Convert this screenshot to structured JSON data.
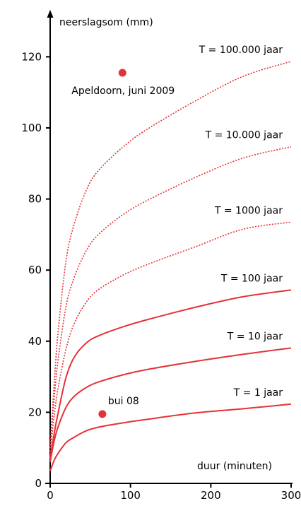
{
  "chart_data": {
    "type": "line",
    "ylabel": "neerslagsom (mm)",
    "xlabel": "duur (minuten)",
    "xlim": [
      0,
      300
    ],
    "ylim": [
      0,
      130
    ],
    "xticks": [
      0,
      100,
      200,
      300
    ],
    "yticks": [
      0,
      20,
      40,
      60,
      80,
      100,
      120
    ],
    "grid": false,
    "series": [
      {
        "name": "T = 1 jaar",
        "style": "solid",
        "x": [
          0,
          5,
          10,
          20,
          30,
          45,
          60,
          90,
          120,
          180,
          240,
          300
        ],
        "y": [
          3.5,
          6.5,
          8.5,
          11.5,
          13,
          14.8,
          15.8,
          17,
          18,
          19.8,
          21,
          22.3
        ]
      },
      {
        "name": "T = 10 jaar",
        "style": "solid",
        "x": [
          0,
          5,
          10,
          20,
          30,
          45,
          60,
          90,
          120,
          180,
          240,
          300
        ],
        "y": [
          6,
          12,
          16,
          21.5,
          24.5,
          27,
          28.5,
          30.5,
          32,
          34.3,
          36.3,
          38.1
        ]
      },
      {
        "name": "T = 100 jaar",
        "style": "solid",
        "x": [
          0,
          5,
          10,
          20,
          30,
          45,
          60,
          90,
          120,
          180,
          240,
          300
        ],
        "y": [
          7,
          14,
          20,
          30,
          35.5,
          39.5,
          41.5,
          44,
          46,
          49.5,
          52.5,
          54.4
        ]
      },
      {
        "name": "T = 1000 jaar",
        "style": "dotted",
        "x": [
          0,
          5,
          10,
          20,
          30,
          45,
          60,
          90,
          120,
          180,
          240,
          300
        ],
        "y": [
          9,
          19,
          27,
          38,
          45,
          51,
          54.5,
          58.5,
          61.5,
          66.5,
          71.5,
          73.5
        ]
      },
      {
        "name": "T = 10.000 jaar",
        "style": "dotted",
        "x": [
          0,
          5,
          10,
          20,
          30,
          45,
          60,
          90,
          120,
          180,
          240,
          300
        ],
        "y": [
          10,
          24,
          35,
          50,
          58,
          65.5,
          70,
          75.5,
          79.5,
          86,
          91.5,
          94.7
        ]
      },
      {
        "name": "T = 100.000 jaar",
        "style": "dotted",
        "x": [
          0,
          5,
          10,
          20,
          30,
          45,
          60,
          90,
          120,
          180,
          240,
          300
        ],
        "y": [
          10,
          28,
          43,
          63,
          73,
          82.5,
          88,
          94.5,
          99.5,
          107.5,
          114.5,
          118.7
        ]
      }
    ],
    "points": [
      {
        "label": "Apeldoorn, juni 2009",
        "x": 90,
        "y": 115.5
      },
      {
        "label": "bui 08",
        "x": 65,
        "y": 19.5
      }
    ],
    "colors": {
      "curve": "#e53238",
      "axis": "#000000"
    }
  }
}
